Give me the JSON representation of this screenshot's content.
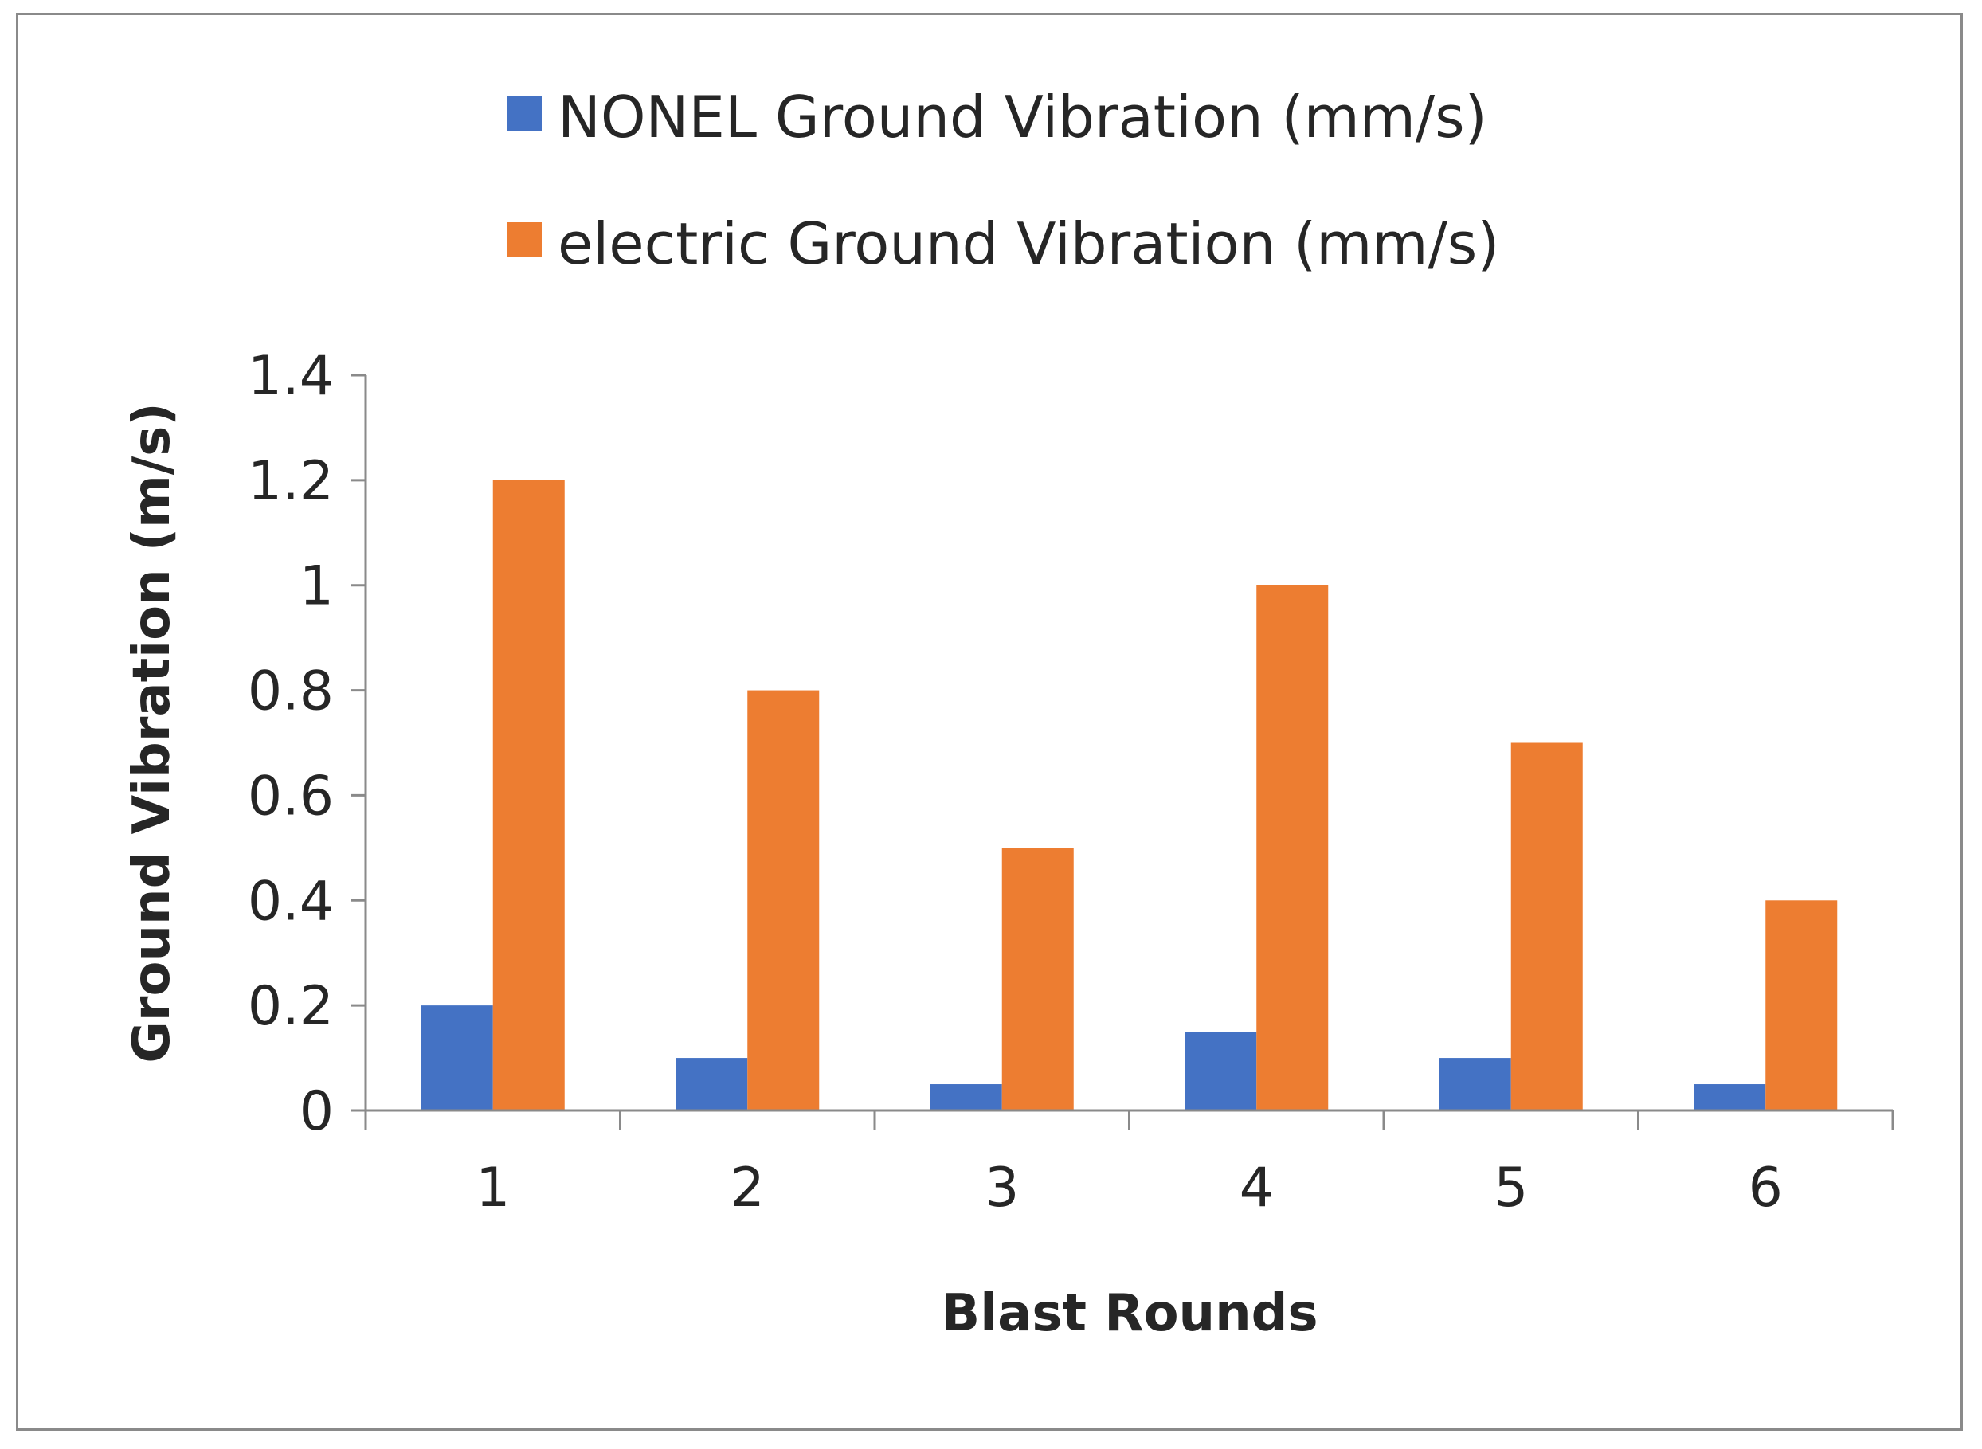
{
  "chart_data": {
    "type": "bar",
    "title": "",
    "xlabel": "Blast Rounds",
    "ylabel": "Ground Vibration (m/s)",
    "categories": [
      "1",
      "2",
      "3",
      "4",
      "5",
      "6"
    ],
    "ylim": [
      0,
      1.4
    ],
    "yticks": [
      0,
      0.2,
      0.4,
      0.6,
      0.8,
      1,
      1.2,
      1.4
    ],
    "ytick_labels": [
      "0",
      "0.2",
      "0.4",
      "0.6",
      "0.8",
      "1",
      "1.2",
      "1.4"
    ],
    "grid": false,
    "legend_position": "top",
    "series": [
      {
        "name": "NONEL Ground Vibration (mm/s)",
        "color": "#4472C4",
        "values": [
          0.2,
          0.1,
          0.05,
          0.15,
          0.1,
          0.05
        ]
      },
      {
        "name": "electric Ground Vibration (mm/s)",
        "color": "#ED7D31",
        "values": [
          1.2,
          0.8,
          0.5,
          1.0,
          0.7,
          0.4
        ]
      }
    ]
  }
}
